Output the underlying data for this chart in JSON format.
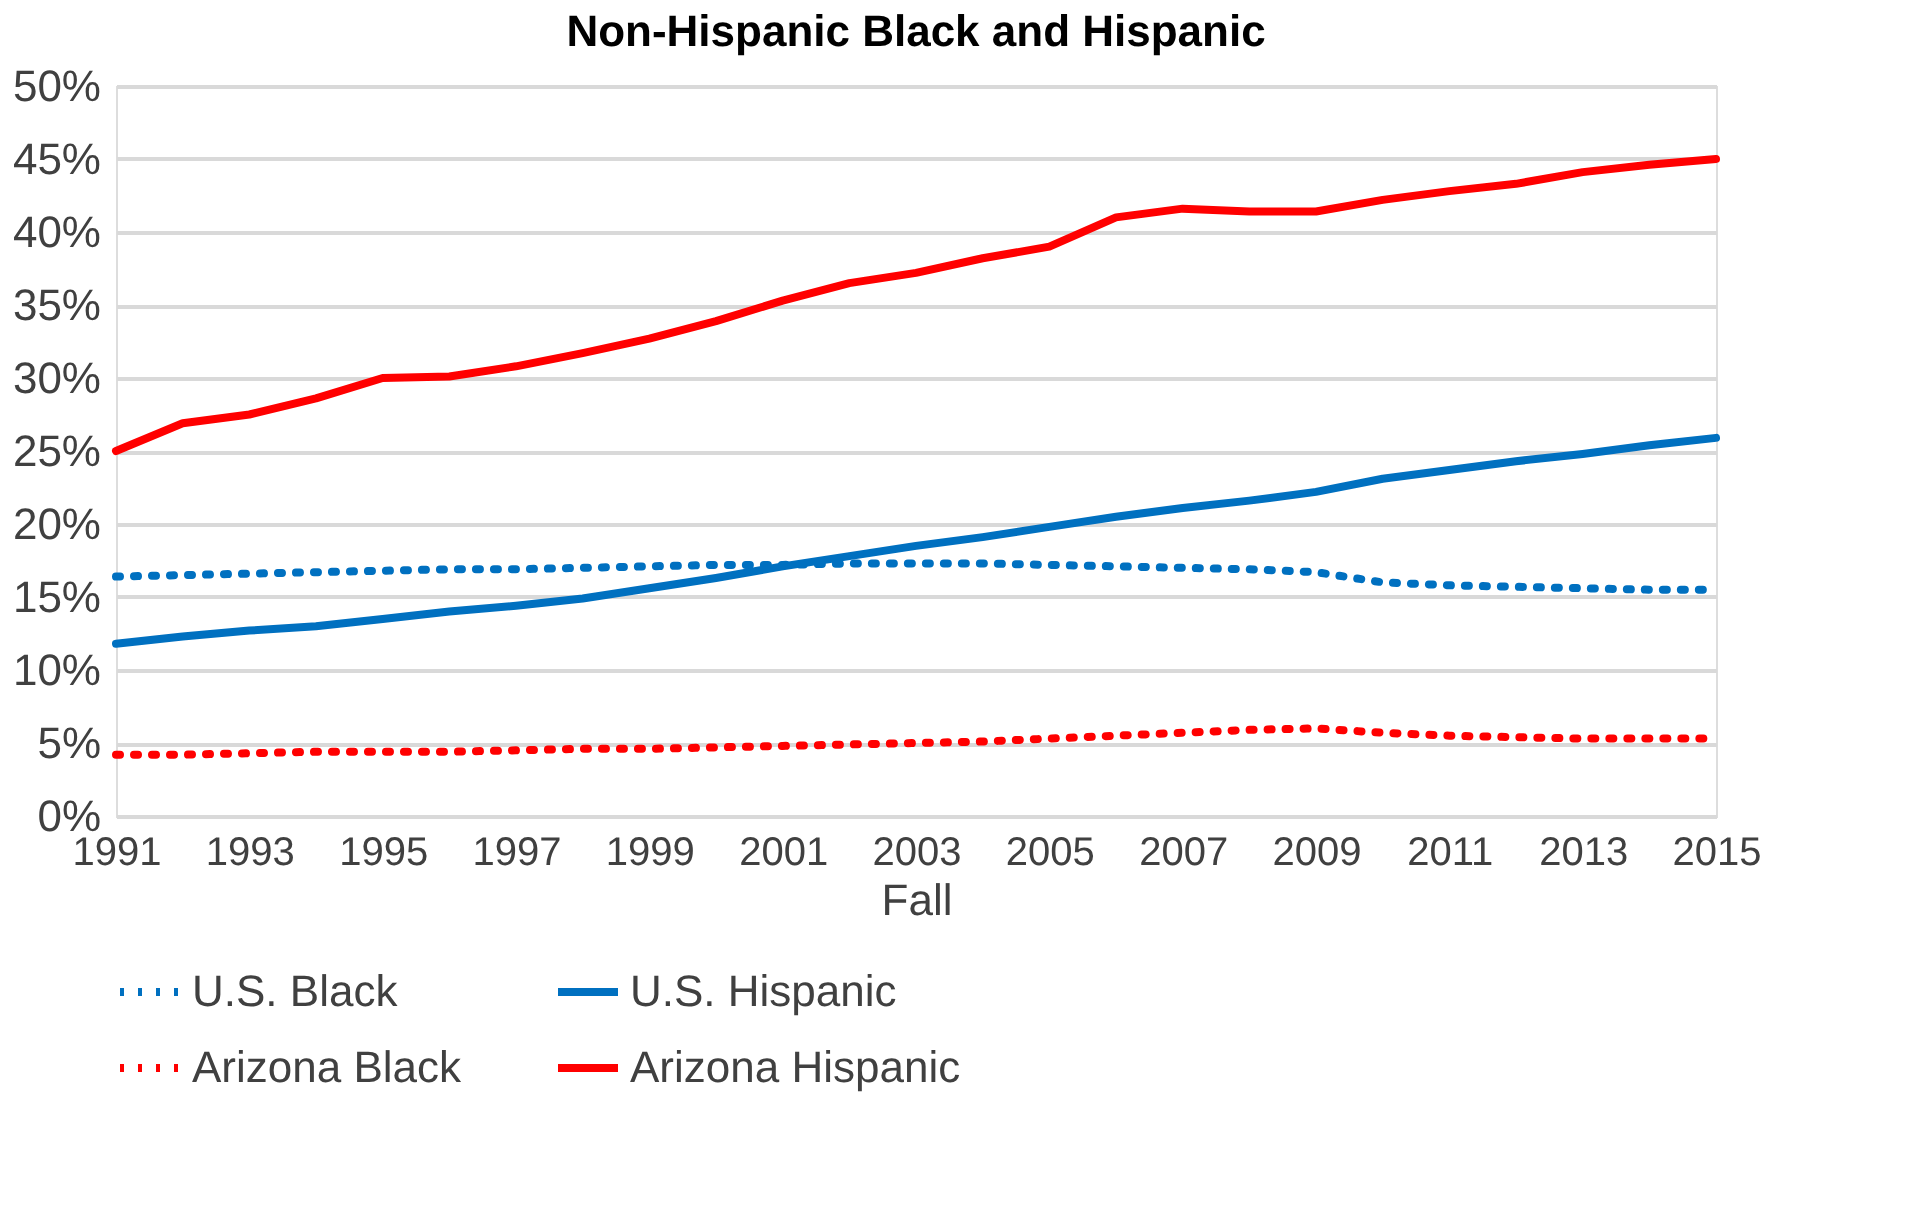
{
  "chart_data": {
    "type": "line",
    "title": "Non-Hispanic Black and Hispanic",
    "xlabel": "Fall",
    "x": [
      1991,
      1992,
      1993,
      1994,
      1995,
      1996,
      1997,
      1998,
      1999,
      2000,
      2001,
      2002,
      2003,
      2004,
      2005,
      2006,
      2007,
      2008,
      2009,
      2010,
      2011,
      2012,
      2013,
      2014,
      2015
    ],
    "series": [
      {
        "name": "U.S. Black",
        "color": "#0070c0",
        "line_style": "dotted",
        "values": [
          16.4,
          16.5,
          16.6,
          16.7,
          16.8,
          16.9,
          16.9,
          17.0,
          17.1,
          17.2,
          17.2,
          17.3,
          17.3,
          17.3,
          17.2,
          17.1,
          17.0,
          16.9,
          16.7,
          16.0,
          15.8,
          15.7,
          15.6,
          15.5,
          15.5
        ]
      },
      {
        "name": "U.S. Hispanic",
        "color": "#0070c0",
        "line_style": "solid",
        "values": [
          11.8,
          12.3,
          12.7,
          13.0,
          13.5,
          14.0,
          14.4,
          14.9,
          15.6,
          16.3,
          17.1,
          17.8,
          18.5,
          19.1,
          19.8,
          20.5,
          21.1,
          21.6,
          22.2,
          23.1,
          23.7,
          24.3,
          24.8,
          25.4,
          25.9
        ]
      },
      {
        "name": "Arizona Black",
        "color": "#ff0000",
        "line_style": "dotted",
        "values": [
          4.2,
          4.2,
          4.3,
          4.4,
          4.4,
          4.4,
          4.5,
          4.6,
          4.6,
          4.7,
          4.8,
          4.9,
          5.0,
          5.1,
          5.3,
          5.5,
          5.7,
          5.9,
          6.0,
          5.7,
          5.5,
          5.4,
          5.3,
          5.3,
          5.3
        ]
      },
      {
        "name": "Arizona Hispanic",
        "color": "#ff0000",
        "line_style": "solid",
        "values": [
          25.0,
          26.9,
          27.5,
          28.6,
          30.0,
          30.1,
          30.8,
          31.7,
          32.7,
          33.9,
          35.3,
          36.5,
          37.2,
          38.2,
          39.0,
          41.0,
          41.6,
          41.4,
          41.4,
          42.2,
          42.8,
          43.3,
          44.1,
          44.6,
          45.0
        ]
      }
    ],
    "xlim": [
      1991,
      2015
    ],
    "xticks": [
      1991,
      1993,
      1995,
      1997,
      1999,
      2001,
      2003,
      2005,
      2007,
      2009,
      2011,
      2013,
      2015
    ],
    "ylim": [
      0,
      50
    ],
    "yticks": [
      {
        "value": 0,
        "label": "0%"
      },
      {
        "value": 5,
        "label": "5%"
      },
      {
        "value": 10,
        "label": "10%"
      },
      {
        "value": 15,
        "label": "15%"
      },
      {
        "value": 20,
        "label": "20%"
      },
      {
        "value": 25,
        "label": "25%"
      },
      {
        "value": 30,
        "label": "30%"
      },
      {
        "value": 35,
        "label": "35%"
      },
      {
        "value": 40,
        "label": "40%"
      },
      {
        "value": 45,
        "label": "45%"
      },
      {
        "value": 50,
        "label": "50%"
      }
    ],
    "grid": "y",
    "legend": "bottom",
    "marker": "none"
  }
}
